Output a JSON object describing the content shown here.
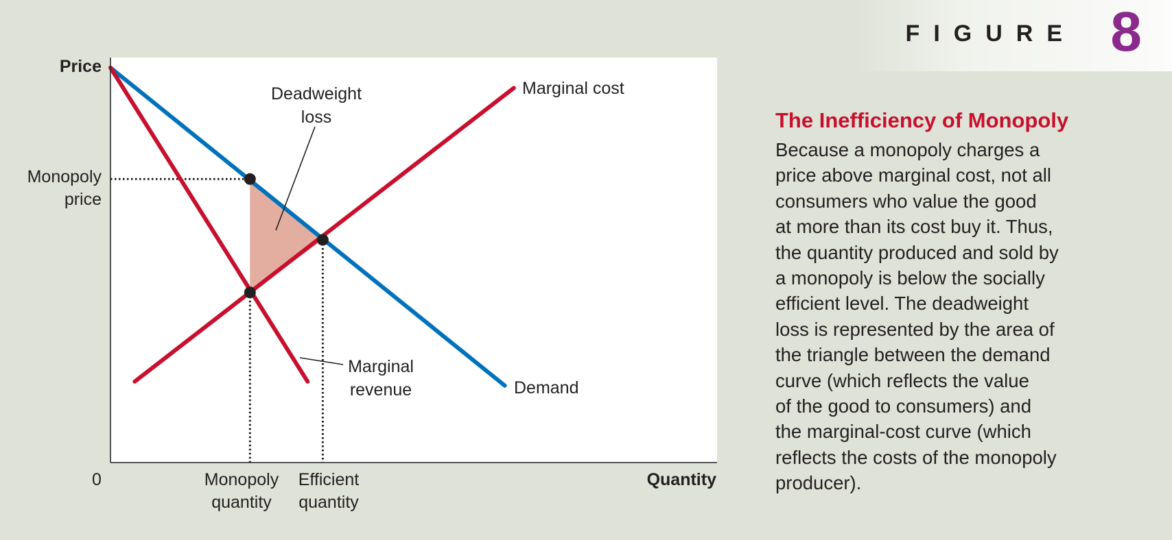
{
  "figure": {
    "label": "FIGURE",
    "number": "8",
    "number_color": "#8a2a8c"
  },
  "caption": {
    "title": "The Inefficiency of Monopoly",
    "title_color": "#c8102e",
    "lines": [
      "Because a monopoly charges a",
      "price above marginal cost, not all",
      "consumers who value the good",
      "at more than its cost buy it. Thus,",
      "the quantity produced and sold by",
      "a monopoly is below the socially",
      "efficient level. The deadweight",
      "loss is represented by the area of",
      "the triangle between the demand",
      "curve (which reflects the value",
      "of the good to consumers) and",
      "the marginal-cost curve (which",
      "reflects the costs of the monopoly",
      "producer)."
    ]
  },
  "chart_data": {
    "type": "line",
    "xlabel": "Quantity",
    "ylabel": "Price",
    "origin_label": "0",
    "xlim": [
      0,
      100
    ],
    "ylim": [
      0,
      100
    ],
    "grid": false,
    "ticks_numeric": false,
    "colors": {
      "demand": "#0072bc",
      "marginal_cost": "#c8102e",
      "marginal_revenue": "#c8102e",
      "deadweight_fill": "#e3ada0",
      "points": "#231f20"
    },
    "series": [
      {
        "name": "Demand",
        "x": [
          0,
          65
        ],
        "y": [
          97.5,
          19
        ]
      },
      {
        "name": "Marginal cost",
        "x": [
          4,
          66.5
        ],
        "y": [
          20,
          92.5
        ]
      },
      {
        "name": "Marginal revenue",
        "x": [
          0,
          32.5
        ],
        "y": [
          97.5,
          20
        ]
      }
    ],
    "points": [
      {
        "x": 23,
        "y": 70
      },
      {
        "x": 35,
        "y": 55
      },
      {
        "x": 23,
        "y": 42
      }
    ],
    "deadweight_loss_triangle": {
      "x": [
        23,
        35,
        23
      ],
      "y": [
        70,
        55,
        42
      ]
    },
    "reference_lines": [
      {
        "axis": "y",
        "value": 70,
        "to_x": 23
      },
      {
        "axis": "x",
        "value": 23,
        "from_y": 42
      },
      {
        "axis": "x",
        "value": 35,
        "from_y": 55
      }
    ],
    "x_ticks": [
      {
        "value": 23,
        "lines": [
          "Monopoly",
          "quantity"
        ]
      },
      {
        "value": 35,
        "lines": [
          "Efficient",
          "quantity"
        ]
      }
    ],
    "y_ticks": [
      {
        "value": 70,
        "lines": [
          "Monopoly",
          "price"
        ]
      }
    ],
    "annotations": {
      "deadweight_loss": [
        "Deadweight",
        "loss"
      ],
      "marginal_revenue": [
        "Marginal",
        "revenue"
      ],
      "marginal_cost": "Marginal cost",
      "demand": "Demand"
    }
  }
}
